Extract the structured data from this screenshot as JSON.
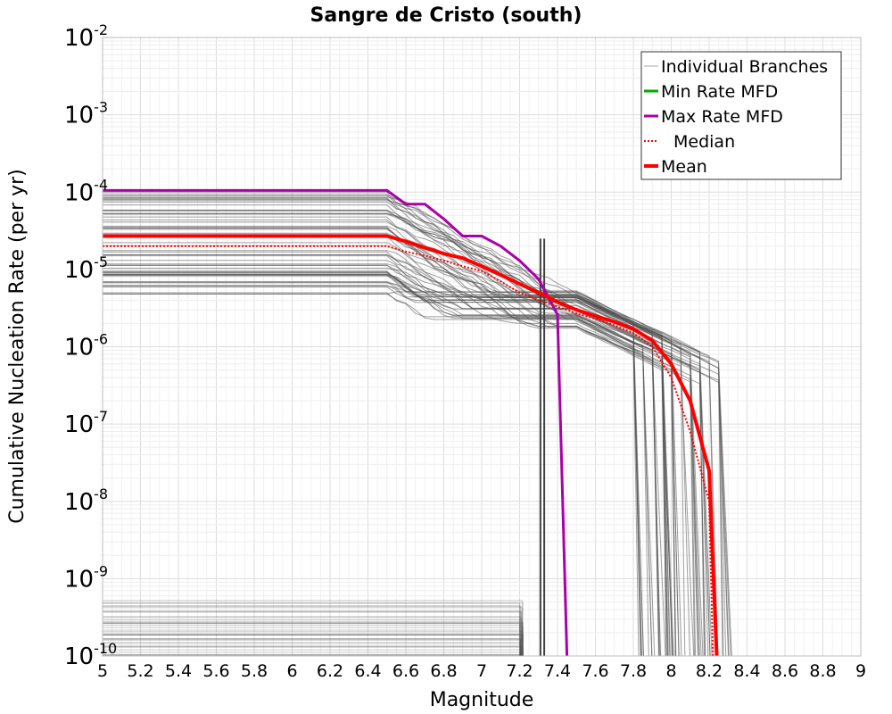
{
  "chart_data": {
    "type": "line",
    "title": "Sangre de Cristo (south)",
    "xlabel": "Magnitude",
    "ylabel": "Cumulative Nucleation Rate (per yr)",
    "xlim": [
      5,
      9
    ],
    "ylim": [
      1e-10,
      0.01
    ],
    "y_scale": "log",
    "grid": true,
    "x_ticks": [
      "5",
      "5.2",
      "5.4",
      "5.6",
      "5.8",
      "6",
      "6.2",
      "6.4",
      "6.6",
      "6.8",
      "7",
      "7.2",
      "7.4",
      "7.6",
      "7.8",
      "8",
      "8.2",
      "8.4",
      "8.6",
      "8.8",
      "9"
    ],
    "y_ticks": [
      {
        "base": "10",
        "exp": "-2"
      },
      {
        "base": "10",
        "exp": "-3"
      },
      {
        "base": "10",
        "exp": "-4"
      },
      {
        "base": "10",
        "exp": "-5"
      },
      {
        "base": "10",
        "exp": "-6"
      },
      {
        "base": "10",
        "exp": "-7"
      },
      {
        "base": "10",
        "exp": "-8"
      },
      {
        "base": "10",
        "exp": "-9"
      },
      {
        "base": "10",
        "exp": "-10"
      }
    ],
    "legend_position": "top-right",
    "legend": [
      {
        "label": "Individual Branches",
        "color": "#aaaaaa",
        "style": "thin"
      },
      {
        "label": "Min Rate MFD",
        "color": "#00aa00",
        "style": "solid"
      },
      {
        "label": "Max Rate MFD",
        "color": "#aa00aa",
        "style": "solid"
      },
      {
        "label": "Median",
        "color": "#ff0000",
        "style": "dotted"
      },
      {
        "label": "Mean",
        "color": "#ff0000",
        "style": "thick"
      }
    ],
    "series": [
      {
        "name": "Max Rate MFD",
        "color": "#aa00aa",
        "x": [
          5.0,
          6.5,
          6.6,
          6.7,
          6.8,
          6.9,
          7.0,
          7.1,
          7.2,
          7.3,
          7.4,
          7.45
        ],
        "y": [
          0.000105,
          0.000105,
          7e-05,
          7e-05,
          4.5e-05,
          2.7e-05,
          2.7e-05,
          2e-05,
          1.3e-05,
          7.5e-06,
          2.6e-06,
          1e-10
        ]
      },
      {
        "name": "Median",
        "color": "#ff0000",
        "x": [
          5.0,
          6.5,
          6.6,
          6.7,
          6.8,
          6.9,
          7.0,
          7.1,
          7.2,
          7.3,
          7.4,
          7.5,
          7.6,
          7.7,
          7.8,
          7.9,
          8.0,
          8.1,
          8.2,
          8.22
        ],
        "y": [
          2e-05,
          2e-05,
          1.7e-05,
          1.5e-05,
          1.3e-05,
          1.1e-05,
          9.5e-06,
          7e-06,
          5e-06,
          4e-06,
          3.3e-06,
          2.7e-06,
          2.3e-06,
          1.9e-06,
          1.5e-06,
          1e-06,
          4e-07,
          8e-08,
          1e-08,
          1e-10
        ]
      },
      {
        "name": "Mean",
        "color": "#ff0000",
        "x": [
          5.0,
          6.5,
          6.6,
          6.7,
          6.8,
          6.9,
          7.0,
          7.1,
          7.2,
          7.3,
          7.4,
          7.5,
          7.6,
          7.7,
          7.8,
          7.9,
          8.0,
          8.1,
          8.2,
          8.24
        ],
        "y": [
          2.7e-05,
          2.7e-05,
          2.3e-05,
          1.9e-05,
          1.6e-05,
          1.4e-05,
          1.1e-05,
          8.5e-06,
          6.5e-06,
          5e-06,
          3.8e-06,
          3e-06,
          2.5e-06,
          2.1e-06,
          1.7e-06,
          1.2e-06,
          6e-07,
          2e-07,
          2.5e-08,
          1e-10
        ]
      }
    ],
    "branches": {
      "color": "#505050",
      "plateau_count": 60,
      "plateau_min": 4.5e-06,
      "plateau_max": 0.0001,
      "plateau_end": 6.5,
      "low_count": 40,
      "low_min": 1e-10,
      "low_max": 5.5e-10,
      "low_end": 7.2
    }
  }
}
